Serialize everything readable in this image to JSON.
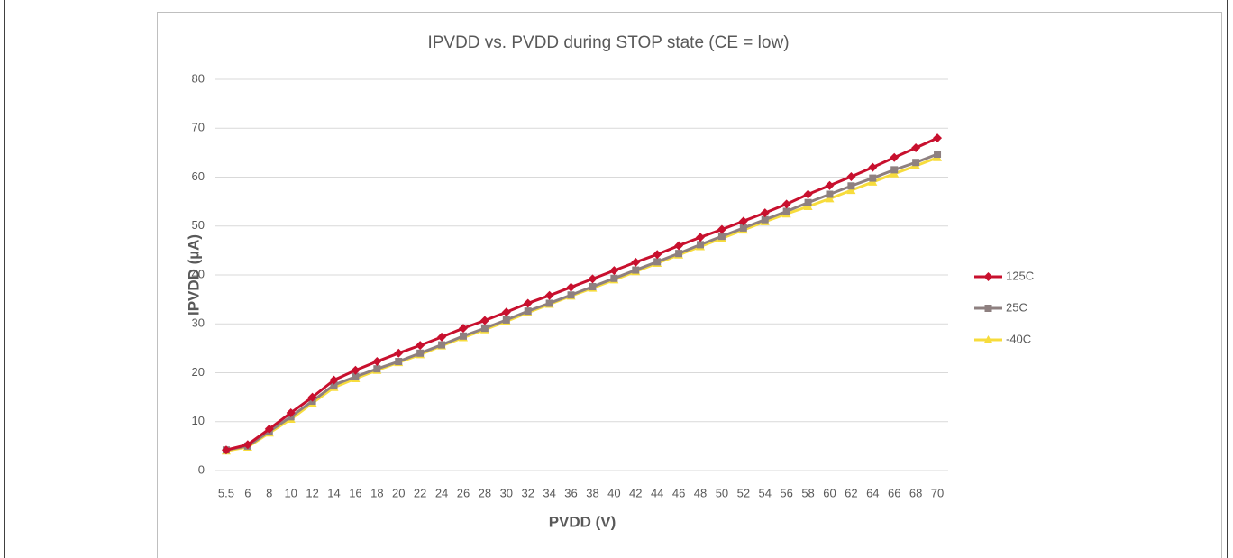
{
  "chart_data": {
    "type": "line",
    "title": "IPVDD vs. PVDD during STOP state (CE = low)",
    "x_label": "PVDD (V)",
    "y_label": "IPVDD (µA)",
    "categories": [
      "5.5",
      "6",
      "8",
      "10",
      "12",
      "14",
      "16",
      "18",
      "20",
      "22",
      "24",
      "26",
      "28",
      "30",
      "32",
      "34",
      "36",
      "38",
      "40",
      "42",
      "44",
      "46",
      "48",
      "50",
      "52",
      "54",
      "56",
      "58",
      "60",
      "62",
      "64",
      "66",
      "68",
      "70"
    ],
    "series": [
      {
        "name": "125C",
        "color": "#c8102e",
        "marker": "diamond",
        "values": [
          4.2,
          5.3,
          8.5,
          11.8,
          15,
          18.5,
          20.5,
          22.3,
          24,
          25.6,
          27.3,
          29.1,
          30.7,
          32.4,
          34.2,
          35.8,
          37.5,
          39.2,
          40.9,
          42.6,
          44.2,
          46,
          47.7,
          49.3,
          51,
          52.7,
          54.5,
          56.5,
          58.3,
          60.1,
          62,
          64,
          66,
          68
        ]
      },
      {
        "name": "25C",
        "color": "#8e8080",
        "marker": "square",
        "values": [
          4.2,
          5,
          8,
          11,
          14.2,
          17.5,
          19.2,
          20.8,
          22.3,
          24,
          25.7,
          27.5,
          29.1,
          30.8,
          32.6,
          34.2,
          35.9,
          37.6,
          39.3,
          41,
          42.7,
          44.4,
          46.2,
          47.9,
          49.6,
          51.3,
          53,
          54.8,
          56.5,
          58.2,
          59.8,
          61.5,
          63,
          64.7
        ]
      },
      {
        "name": "-40C",
        "color": "#f7dc3c",
        "marker": "triangle",
        "values": [
          4,
          4.8,
          7.7,
          10.5,
          13.8,
          17,
          18.8,
          20.5,
          22.1,
          23.7,
          25.5,
          27.2,
          28.8,
          30.5,
          32.3,
          34,
          35.7,
          37.3,
          39,
          40.7,
          42.4,
          44.1,
          45.8,
          47.5,
          49.2,
          50.9,
          52.5,
          54,
          55.6,
          57.3,
          59,
          60.7,
          62.3,
          64
        ]
      }
    ],
    "ylim": [
      0,
      80
    ],
    "yticks": [
      0,
      10,
      20,
      30,
      40,
      50,
      60,
      70,
      80
    ],
    "grid": true,
    "legend": "right"
  }
}
